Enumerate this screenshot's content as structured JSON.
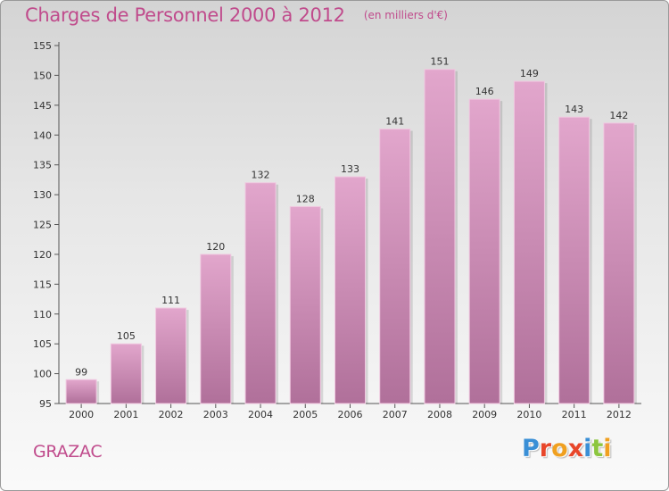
{
  "header": {
    "title": "Charges de Personnel 2000 à 2012",
    "subtitle": "(en milliers d'€)"
  },
  "footer": {
    "commune": "GRAZAC",
    "logo_text": "Proxiti",
    "logo_colors": [
      "#3a8fd6",
      "#e8462a",
      "#f0a020",
      "#e8462a",
      "#3a8fd6",
      "#8cc63f",
      "#f0a020"
    ]
  },
  "chart_data": {
    "type": "bar",
    "categories": [
      "2000",
      "2001",
      "2002",
      "2003",
      "2004",
      "2005",
      "2006",
      "2007",
      "2008",
      "2009",
      "2010",
      "2011",
      "2012"
    ],
    "values": [
      99,
      105,
      111,
      120,
      132,
      128,
      133,
      141,
      151,
      146,
      149,
      143,
      142
    ],
    "ylim": [
      95,
      155
    ],
    "yticks": [
      95,
      100,
      105,
      110,
      115,
      120,
      125,
      130,
      135,
      140,
      145,
      150,
      155
    ],
    "bar_color_top": "#e2a6cc",
    "bar_color_bottom": "#b0709a",
    "grid": false
  }
}
